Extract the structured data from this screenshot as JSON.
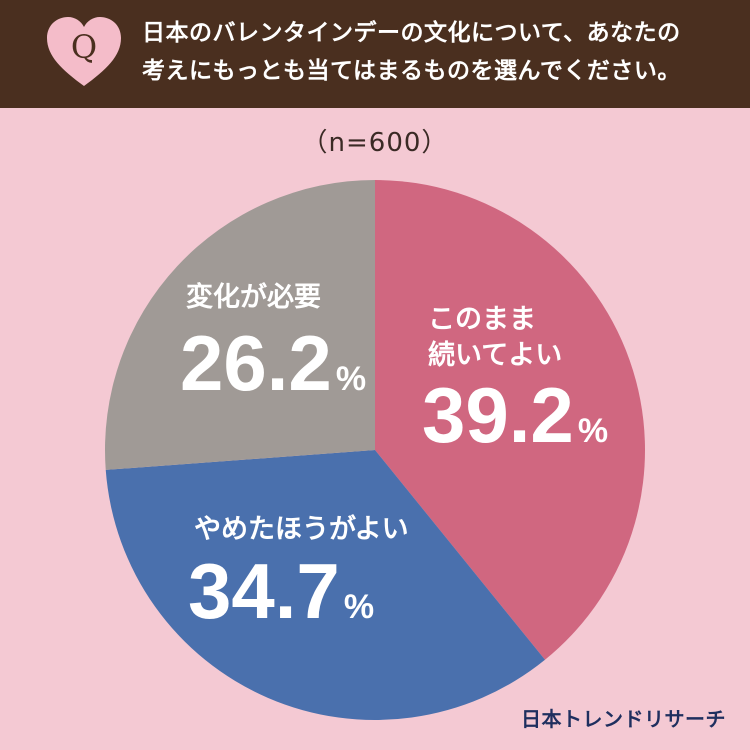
{
  "header": {
    "badge_letter": "Q",
    "question_line1": "日本のバレンタインデーの文化について、あなたの",
    "question_line2": "考えにもっとも当てはまるものを選んでください。"
  },
  "sample_size": "（n=600）",
  "chart_data": {
    "type": "pie",
    "title": "",
    "start": "12 o'clock, clockwise",
    "unit": "%",
    "slices": [
      {
        "label_lines": [
          "このまま",
          "続いてよい"
        ],
        "value": 39.2,
        "value_text": "39.2",
        "color": "#d06780"
      },
      {
        "label_lines": [
          "やめたほうがよい"
        ],
        "value": 34.7,
        "value_text": "34.7",
        "color": "#4a70ad"
      },
      {
        "label_lines": [
          "変化が必要"
        ],
        "value": 26.2,
        "value_text": "26.2",
        "color": "#a09a96"
      }
    ]
  },
  "brand": "日本トレンドリサーチ",
  "colors": {
    "background": "#f4c9d3",
    "header": "#4a2f1f",
    "badge_heart": "#f4bcc9",
    "badge_letter": "#4a2f1f",
    "label_text": "#ffffff",
    "brand_text": "#1f2f5f"
  }
}
